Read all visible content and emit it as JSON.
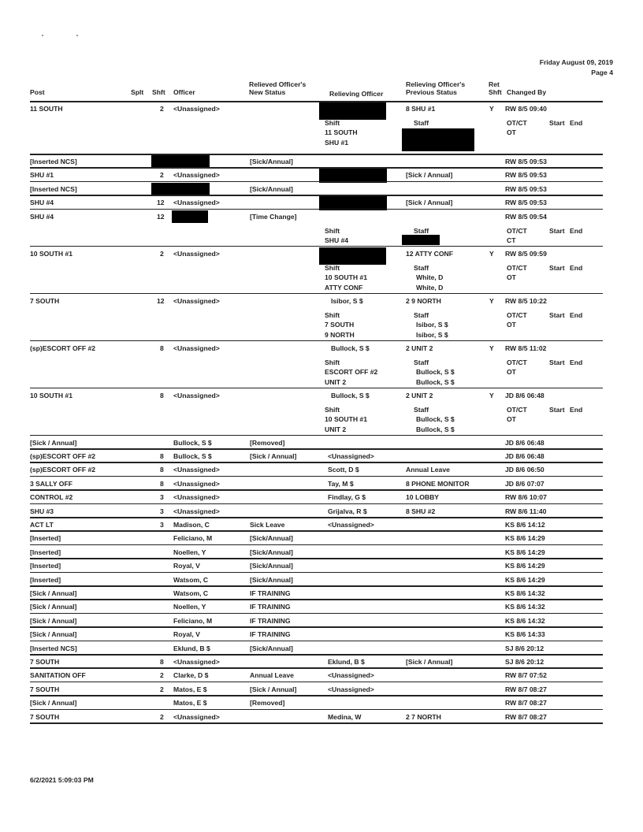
{
  "header": {
    "date": "Friday August 09, 2019",
    "page": "Page 4"
  },
  "columns": {
    "post": "Post",
    "splt": "Splt",
    "shft": "Shft",
    "officer": "Officer",
    "new_status_1": "Relieved Officer's",
    "new_status_2": "New Status",
    "relieving_officer": "Relieving Officer",
    "prev_status_1": "Relieving Officer's",
    "prev_status_2": "Previous Status",
    "ret_1": "Ret",
    "ret_2": "Shft",
    "changed_by": "Changed By"
  },
  "detail_labels": {
    "shift": "Shift",
    "staff": "Staff",
    "otct": "OT/CT",
    "start": "Start",
    "end": "End"
  },
  "rows": [
    {
      "post": "11 SOUTH",
      "shft": "2",
      "officer": "<Unassigned>",
      "new_status": "",
      "relieving": "",
      "relieving_redacted": true,
      "prev_status": "8 SHU #1",
      "ret": "Y",
      "changed_by": "RW 8/5 09:40",
      "detail": {
        "shift": [
          "11 SOUTH",
          "SHU #1"
        ],
        "staff": [
          "",
          ""
        ],
        "staff_redacted": true,
        "otct": "OT"
      }
    },
    {
      "post": "[Inserted NCS]",
      "shft": "",
      "officer": "",
      "officer_redacted": true,
      "new_status": "[Sick/Annual]",
      "relieving": "",
      "prev_status": "",
      "ret": "",
      "changed_by": "RW 8/5 09:53"
    },
    {
      "post": "SHU #1",
      "shft": "2",
      "officer": "<Unassigned>",
      "new_status": "",
      "relieving": "",
      "relieving_redacted": true,
      "prev_status": "[Sick / Annual]",
      "ret": "",
      "changed_by": "RW 8/5 09:53"
    },
    {
      "post": "[Inserted NCS]",
      "shft": "",
      "officer": "",
      "officer_redacted": true,
      "new_status": "[Sick/Annual]",
      "relieving": "",
      "prev_status": "",
      "ret": "",
      "changed_by": "RW 8/5 09:53"
    },
    {
      "post": "SHU #4",
      "shft": "12",
      "officer": "<Unassigned>",
      "new_status": "",
      "relieving": "",
      "relieving_redacted": true,
      "prev_status": "[Sick / Annual]",
      "ret": "",
      "changed_by": "RW 8/5 09:53"
    },
    {
      "post": "SHU #4",
      "shft": "12",
      "officer": "",
      "officer_redacted": true,
      "new_status": "[Time Change]",
      "relieving": "",
      "prev_status": "",
      "ret": "",
      "changed_by": "RW 8/5 09:54",
      "detail": {
        "shift": [
          "SHU #4"
        ],
        "staff": [
          ""
        ],
        "staff_redacted": true,
        "otct": "CT"
      }
    },
    {
      "post": "10 SOUTH #1",
      "shft": "2",
      "officer": "<Unassigned>",
      "new_status": "",
      "relieving": "",
      "relieving_redacted": true,
      "prev_status": "12 ATTY CONF",
      "ret": "Y",
      "changed_by": "RW 8/5 09:59",
      "detail": {
        "shift": [
          "10 SOUTH #1",
          "ATTY CONF"
        ],
        "staff": [
          "White, D",
          "White, D"
        ],
        "otct": "OT"
      }
    },
    {
      "post": "7 SOUTH",
      "shft": "12",
      "officer": "<Unassigned>",
      "new_status": "",
      "relieving": "Isibor, S $",
      "prev_status": "2 9 NORTH",
      "ret": "Y",
      "changed_by": "RW 8/5 10:22",
      "detail": {
        "shift": [
          "7 SOUTH",
          "9 NORTH"
        ],
        "staff": [
          "Isibor, S $",
          "Isibor, S $"
        ],
        "otct": "OT"
      }
    },
    {
      "post": "(sp)ESCORT OFF #2",
      "shft": "8",
      "officer": "<Unassigned>",
      "new_status": "",
      "relieving": "Bullock, S $",
      "prev_status": "2 UNIT 2",
      "ret": "Y",
      "changed_by": "RW 8/5 11:02",
      "detail": {
        "shift": [
          "ESCORT OFF #2",
          "UNIT 2"
        ],
        "staff": [
          "Bullock, S $",
          "Bullock, S $"
        ],
        "otct": "OT"
      }
    },
    {
      "post": "10 SOUTH #1",
      "shft": "8",
      "officer": "<Unassigned>",
      "new_status": "",
      "relieving": "Bullock, S $",
      "prev_status": "2 UNIT 2",
      "ret": "Y",
      "changed_by": "JD 8/6 06:48",
      "detail": {
        "shift": [
          "10 SOUTH #1",
          "UNIT 2"
        ],
        "staff": [
          "Bullock, S $",
          "Bullock, S $"
        ],
        "otct": "OT"
      }
    },
    {
      "post": "[Sick / Annual]",
      "shft": "",
      "officer": "Bullock, S $",
      "new_status": "[Removed]",
      "relieving": "",
      "prev_status": "",
      "ret": "",
      "changed_by": "JD 8/6 06:48"
    },
    {
      "post": "(sp)ESCORT OFF #2",
      "shft": "8",
      "officer": "Bullock, S $",
      "new_status": "[Sick / Annual]",
      "relieving": "<Unassigned>",
      "prev_status": "",
      "ret": "",
      "changed_by": "JD 8/6 06:48"
    },
    {
      "post": "(sp)ESCORT OFF #2",
      "shft": "8",
      "officer": "<Unassigned>",
      "new_status": "",
      "relieving": "Scott, D $",
      "prev_status": "Annual Leave",
      "ret": "",
      "changed_by": "JD 8/6 06:50"
    },
    {
      "post": "3 SALLY OFF",
      "shft": "8",
      "officer": "<Unassigned>",
      "new_status": "",
      "relieving": "Tay, M $",
      "prev_status": "8 PHONE MONITOR",
      "ret": "",
      "changed_by": "JD 8/6 07:07"
    },
    {
      "post": "CONTROL #2",
      "shft": "3",
      "officer": "<Unassigned>",
      "new_status": "",
      "relieving": "Findlay, G $",
      "prev_status": "10 LOBBY",
      "ret": "",
      "changed_by": "RW 8/6 10:07"
    },
    {
      "post": "SHU #3",
      "shft": "3",
      "officer": "<Unassigned>",
      "new_status": "",
      "relieving": "Grijalva, R $",
      "prev_status": "8 SHU #2",
      "ret": "",
      "changed_by": "RW 8/6 11:40"
    },
    {
      "post": "ACT LT",
      "shft": "3",
      "officer": "Madison, C",
      "new_status": "Sick Leave",
      "relieving": "<Unassigned>",
      "prev_status": "",
      "ret": "",
      "changed_by": "KS 8/6 14:12"
    },
    {
      "post": "[Inserted]",
      "shft": "",
      "officer": "Feliciano, M",
      "new_status": "[Sick/Annual]",
      "relieving": "",
      "prev_status": "",
      "ret": "",
      "changed_by": "KS 8/6 14:29"
    },
    {
      "post": "[Inserted]",
      "shft": "",
      "officer": "Noellen, Y",
      "new_status": "[Sick/Annual]",
      "relieving": "",
      "prev_status": "",
      "ret": "",
      "changed_by": "KS 8/6 14:29"
    },
    {
      "post": "[Inserted]",
      "shft": "",
      "officer": "Royal, V",
      "new_status": "[Sick/Annual]",
      "relieving": "",
      "prev_status": "",
      "ret": "",
      "changed_by": "KS 8/6 14:29"
    },
    {
      "post": "[Inserted]",
      "shft": "",
      "officer": "Watsom, C",
      "new_status": "[Sick/Annual]",
      "relieving": "",
      "prev_status": "",
      "ret": "",
      "changed_by": "KS 8/6 14:29"
    },
    {
      "post": "[Sick / Annual]",
      "shft": "",
      "officer": "Watsom, C",
      "new_status": "IF TRAINING",
      "relieving": "",
      "prev_status": "",
      "ret": "",
      "changed_by": "KS 8/6 14:32"
    },
    {
      "post": "[Sick / Annual]",
      "shft": "",
      "officer": "Noellen, Y",
      "new_status": "IF TRAINING",
      "relieving": "",
      "prev_status": "",
      "ret": "",
      "changed_by": "KS 8/6 14:32"
    },
    {
      "post": "[Sick / Annual]",
      "shft": "",
      "officer": "Feliciano, M",
      "new_status": "IF TRAINING",
      "relieving": "",
      "prev_status": "",
      "ret": "",
      "changed_by": "KS 8/6 14:32"
    },
    {
      "post": "[Sick / Annual]",
      "shft": "",
      "officer": "Royal, V",
      "new_status": "IF TRAINING",
      "relieving": "",
      "prev_status": "",
      "ret": "",
      "changed_by": "KS 8/6 14:33"
    },
    {
      "post": "[Inserted NCS]",
      "shft": "",
      "officer": "Eklund, B $",
      "new_status": "[Sick/Annual]",
      "relieving": "",
      "prev_status": "",
      "ret": "",
      "changed_by": "SJ 8/6 20:12"
    },
    {
      "post": "7 SOUTH",
      "shft": "8",
      "officer": "<Unassigned>",
      "new_status": "",
      "relieving": "Eklund, B $",
      "prev_status": "[Sick / Annual]",
      "ret": "",
      "changed_by": "SJ 8/6 20:12"
    },
    {
      "post": "SANITATION OFF",
      "shft": "2",
      "officer": "Clarke, D $",
      "new_status": "Annual Leave",
      "relieving": "<Unassigned>",
      "prev_status": "",
      "ret": "",
      "changed_by": "RW 8/7 07:52"
    },
    {
      "post": "7 SOUTH",
      "shft": "2",
      "officer": "Matos, E $",
      "new_status": "[Sick / Annual]",
      "relieving": "<Unassigned>",
      "prev_status": "",
      "ret": "",
      "changed_by": "RW 8/7 08:27"
    },
    {
      "post": "[Sick / Annual]",
      "shft": "",
      "officer": "Matos, E $",
      "new_status": "[Removed]",
      "relieving": "",
      "prev_status": "",
      "ret": "",
      "changed_by": "RW 8/7 08:27"
    },
    {
      "post": "7 SOUTH",
      "shft": "2",
      "officer": "<Unassigned>",
      "new_status": "",
      "relieving": "Medina, W",
      "prev_status": "2 7 NORTH",
      "ret": "",
      "changed_by": "RW 8/7 08:27"
    }
  ],
  "footer": {
    "printed": "6/2/2021 5:09:03 PM"
  }
}
